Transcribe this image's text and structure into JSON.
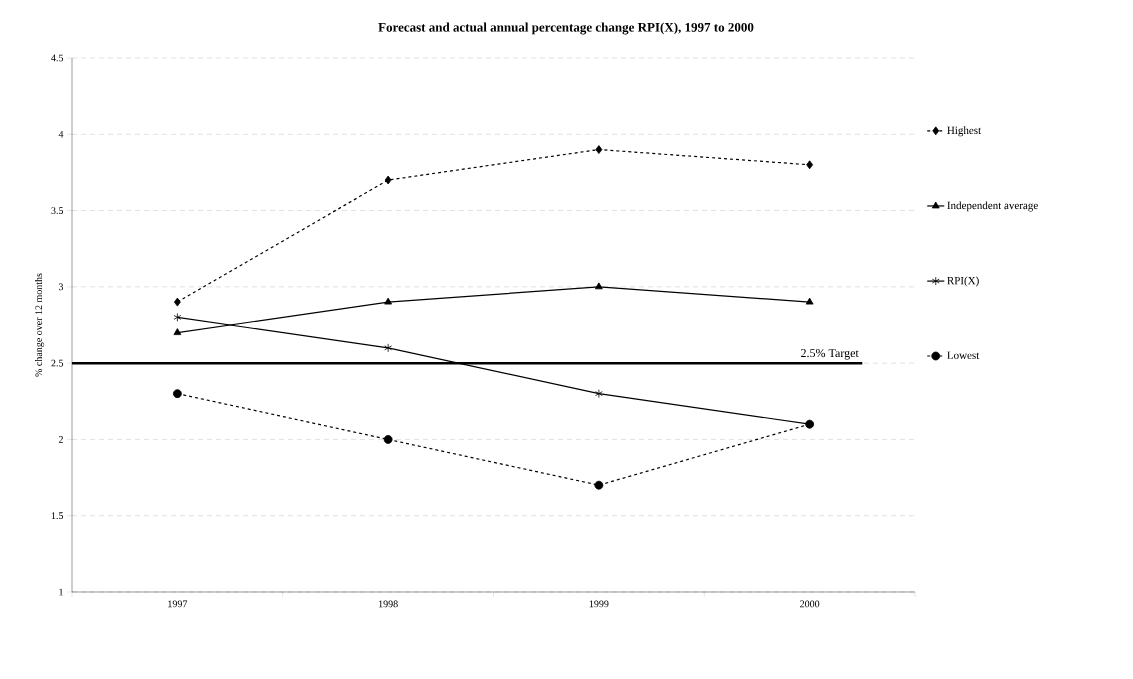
{
  "chart_data": {
    "type": "line",
    "title": "Forecast and actual annual percentage change RPI(X), 1997 to 2000",
    "ylabel": "% change over 12 months",
    "categories": [
      "1997",
      "1998",
      "1999",
      "2000"
    ],
    "series": [
      {
        "name": "Highest",
        "color": "#000000",
        "values": [
          2.9,
          3.7,
          3.9,
          3.8
        ],
        "marker": "diamond",
        "line_style": "dashed"
      },
      {
        "name": "Independent average",
        "color": "#000000",
        "values": [
          2.7,
          2.9,
          3.0,
          2.9
        ],
        "marker": "triangle",
        "line_style": "solid"
      },
      {
        "name": "RPI(X)",
        "color": "#000000",
        "values": [
          2.8,
          2.6,
          2.3,
          2.1
        ],
        "marker": "cross",
        "line_style": "solid"
      },
      {
        "name": "Lowest",
        "color": "#000000",
        "values": [
          2.3,
          2.0,
          1.7,
          2.1
        ],
        "marker": "circle",
        "line_style": "dashed"
      }
    ],
    "ylim": [
      1,
      4.5
    ],
    "yticks": [
      1,
      1.5,
      2,
      2.5,
      3,
      3.5,
      4,
      4.5
    ],
    "grid": "y",
    "legend": "right",
    "ref_lines": [
      {
        "axis": "y",
        "value": 2.5,
        "label": "2.5% Target",
        "color": "#000000",
        "line_style": "solid"
      }
    ]
  }
}
